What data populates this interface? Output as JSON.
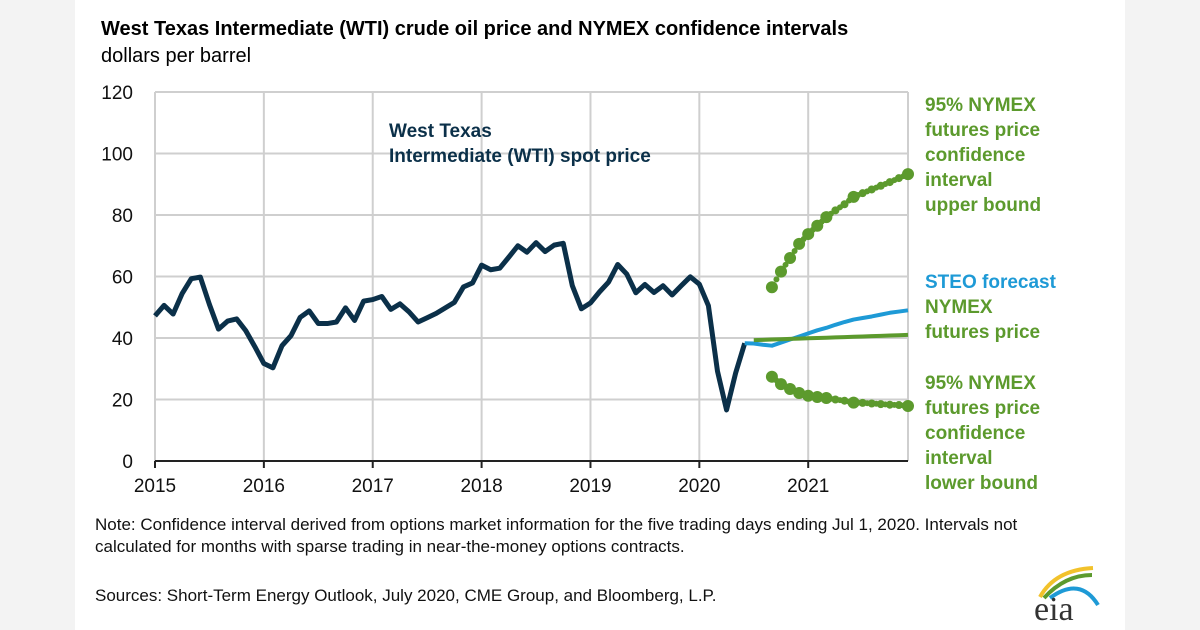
{
  "title": "West Texas Intermediate (WTI) crude oil price and NYMEX confidence intervals",
  "subtitle": "dollars per barrel",
  "note": "Note: Confidence interval derived from options market information for the five trading days ending Jul 1, 2020. Intervals not calculated for months with sparse trading in near-the-money options contracts.",
  "source": "Sources: Short-Term Energy Outlook, July 2020, CME Group, and Bloomberg, L.P.",
  "logo_text": "eia",
  "chart_data": {
    "type": "line",
    "ylim": [
      0,
      120
    ],
    "yticks": [
      "0",
      "20",
      "40",
      "60",
      "80",
      "100",
      "120"
    ],
    "xlim": [
      "2015-01",
      "2021-12"
    ],
    "xticks": [
      "2015",
      "2016",
      "2017",
      "2018",
      "2019",
      "2020",
      "2021"
    ],
    "grid": true,
    "colors": {
      "wti": "#0b3049",
      "steo": "#1e9ad6",
      "nymex": "#5c9a2d"
    },
    "labels": {
      "wti": [
        "West Texas",
        "Intermediate (WTI) spot price"
      ],
      "upper": [
        "95% NYMEX",
        "futures price",
        "confidence",
        "interval",
        "upper bound"
      ],
      "steo": [
        "STEO forecast"
      ],
      "nymex": [
        "NYMEX",
        "futures price"
      ],
      "lower": [
        "95% NYMEX",
        "futures price",
        "confidence",
        "interval",
        "lower bound"
      ]
    },
    "series": [
      {
        "key": "wti",
        "style": "solid",
        "start": "2015-01",
        "values": [
          47.2,
          50.6,
          47.8,
          54.5,
          59.3,
          59.8,
          50.9,
          42.9,
          45.5,
          46.2,
          42.4,
          37.2,
          31.7,
          30.3,
          37.5,
          40.8,
          46.7,
          48.8,
          44.7,
          44.7,
          45.2,
          49.8,
          45.7,
          52.0,
          52.5,
          53.5,
          49.3,
          51.1,
          48.5,
          45.2,
          46.6,
          48.0,
          49.8,
          51.6,
          56.6,
          57.9,
          63.7,
          62.2,
          62.7,
          66.3,
          70.0,
          67.9,
          71.0,
          68.1,
          70.2,
          70.8,
          57.0,
          49.5,
          51.4,
          55.0,
          58.2,
          63.9,
          60.8,
          54.7,
          57.4,
          54.8,
          57.0,
          54.0,
          57.0,
          59.9,
          57.5,
          50.5,
          29.2,
          16.6,
          28.6,
          38.3
        ]
      },
      {
        "key": "steo",
        "style": "solid",
        "start": "2020-06",
        "values": [
          38.3,
          38.2,
          37.8,
          37.5,
          38.5,
          39.5,
          40.5,
          41.5,
          42.5,
          43.3,
          44.3,
          45.2,
          46.0,
          46.5,
          47.0,
          47.6,
          48.2,
          48.6,
          49.0
        ]
      },
      {
        "key": "nymex",
        "style": "solid",
        "start": "2020-07",
        "values": [
          39.3,
          39.4,
          39.5,
          39.6,
          39.7,
          39.8,
          39.9,
          40.0,
          40.1,
          40.2,
          40.3,
          40.4,
          40.5,
          40.6,
          40.7,
          40.8,
          40.9,
          41.0
        ]
      },
      {
        "key": "upper",
        "style": "dotted",
        "start": "2020-09",
        "values": [
          56.5,
          61.6,
          66.0,
          70.6,
          73.8,
          76.5,
          79.3,
          81.5,
          83.5,
          85.9,
          87.1,
          88.3,
          89.5,
          90.7,
          92.0,
          93.3
        ],
        "calculated": [
          true,
          true,
          true,
          true,
          true,
          true,
          true,
          false,
          false,
          true,
          false,
          false,
          false,
          false,
          false,
          true
        ]
      },
      {
        "key": "lower",
        "style": "dotted",
        "start": "2020-09",
        "values": [
          27.4,
          25.0,
          23.4,
          22.1,
          21.2,
          20.8,
          20.5,
          20.0,
          19.6,
          19.0,
          18.9,
          18.7,
          18.5,
          18.3,
          18.2,
          17.9
        ],
        "calculated": [
          true,
          true,
          true,
          true,
          true,
          true,
          true,
          false,
          false,
          true,
          false,
          false,
          false,
          false,
          false,
          true
        ]
      }
    ]
  }
}
